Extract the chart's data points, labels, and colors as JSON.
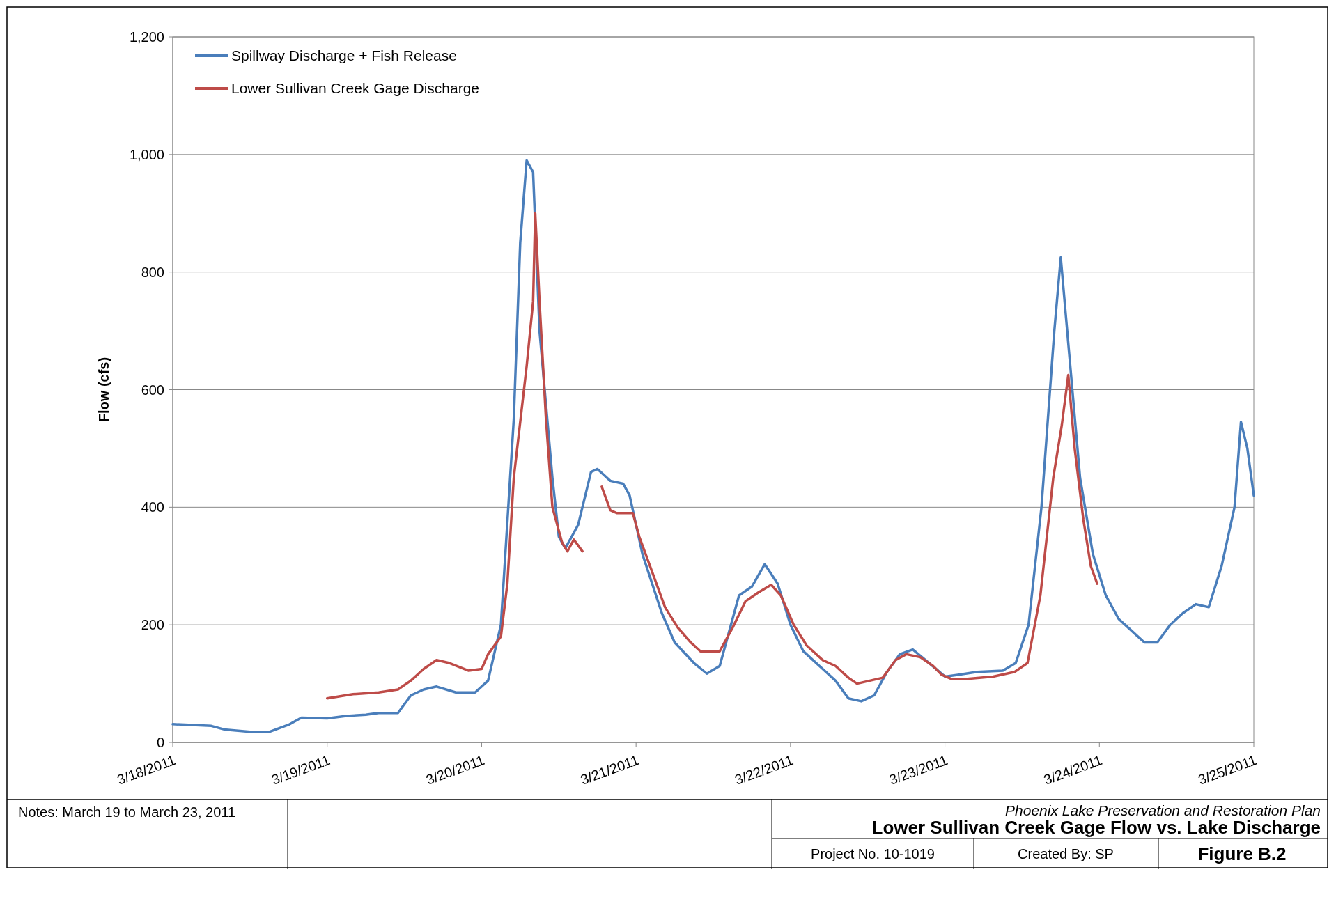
{
  "chart_data": {
    "type": "line",
    "title": "Lower Sullivan Creek Gage Flow vs. Lake Discharge",
    "subtitle": "Phoenix Lake Preservation and Restoration Plan",
    "ylabel": "Flow (cfs)",
    "annotations": [
      "Notes: March 19 to March 23, 2011",
      "Project No. 10-1019",
      "Created By: SP",
      "Figure B.2"
    ],
    "xlim": [
      "2011-03-18",
      "2011-03-25"
    ],
    "xticks": [
      {
        "value": "2011-03-18",
        "label": "3/18/2011"
      },
      {
        "value": "2011-03-19",
        "label": "3/19/2011"
      },
      {
        "value": "2011-03-20",
        "label": "3/20/2011"
      },
      {
        "value": "2011-03-21",
        "label": "3/21/2011"
      },
      {
        "value": "2011-03-22",
        "label": "3/22/2011"
      },
      {
        "value": "2011-03-23",
        "label": "3/23/2011"
      },
      {
        "value": "2011-03-24",
        "label": "3/24/2011"
      },
      {
        "value": "2011-03-25",
        "label": "3/25/2011"
      }
    ],
    "ylim": [
      0,
      1200
    ],
    "yticks": [
      {
        "value": 0,
        "label": "0"
      },
      {
        "value": 200,
        "label": "200"
      },
      {
        "value": 400,
        "label": "400"
      },
      {
        "value": 600,
        "label": "600"
      },
      {
        "value": 800,
        "label": "800"
      },
      {
        "value": 1000,
        "label": "1,000"
      },
      {
        "value": 1200,
        "label": "1,200"
      }
    ],
    "grid": "y",
    "legend": "top left",
    "marker": "none",
    "line_style": "solid",
    "series": [
      {
        "name": "Spillway Discharge + Fish Release",
        "color": "#4a7ebb",
        "x": [
          "2011-03-18T00:00",
          "2011-03-18T06:00",
          "2011-03-18T08:00",
          "2011-03-18T12:00",
          "2011-03-18T15:00",
          "2011-03-18T18:00",
          "2011-03-18T20:00",
          "2011-03-19T00:00",
          "2011-03-19T03:00",
          "2011-03-19T06:00",
          "2011-03-19T08:00",
          "2011-03-19T11:00",
          "2011-03-19T13:00",
          "2011-03-19T15:00",
          "2011-03-19T17:00",
          "2011-03-19T20:00",
          "2011-03-19T23:00",
          "2011-03-20T01:00",
          "2011-03-20T03:00",
          "2011-03-20T05:00",
          "2011-03-20T06:00",
          "2011-03-20T07:00",
          "2011-03-20T08:00",
          "2011-03-20T09:00",
          "2011-03-20T11:00",
          "2011-03-20T12:00",
          "2011-03-20T13:00",
          "2011-03-20T15:00",
          "2011-03-20T17:00",
          "2011-03-20T18:00",
          "2011-03-20T20:00",
          "2011-03-20T22:00",
          "2011-03-20T23:00",
          "2011-03-21T01:00",
          "2011-03-21T04:00",
          "2011-03-21T06:00",
          "2011-03-21T09:00",
          "2011-03-21T11:00",
          "2011-03-21T13:00",
          "2011-03-21T14:00",
          "2011-03-21T16:00",
          "2011-03-21T18:00",
          "2011-03-21T20:00",
          "2011-03-21T22:00",
          "2011-03-22T00:00",
          "2011-03-22T02:00",
          "2011-03-22T05:00",
          "2011-03-22T07:00",
          "2011-03-22T09:00",
          "2011-03-22T11:00",
          "2011-03-22T13:00",
          "2011-03-22T15:00",
          "2011-03-22T17:00",
          "2011-03-22T19:00",
          "2011-03-22T21:00",
          "2011-03-23T00:00",
          "2011-03-23T02:00",
          "2011-03-23T05:00",
          "2011-03-23T09:00",
          "2011-03-23T11:00",
          "2011-03-23T13:00",
          "2011-03-23T15:00",
          "2011-03-23T17:00",
          "2011-03-23T18:00",
          "2011-03-23T19:00",
          "2011-03-23T21:00",
          "2011-03-23T23:00",
          "2011-03-24T01:00",
          "2011-03-24T03:00",
          "2011-03-24T05:00",
          "2011-03-24T07:00",
          "2011-03-24T09:00",
          "2011-03-24T11:00",
          "2011-03-24T13:00",
          "2011-03-24T15:00",
          "2011-03-24T17:00",
          "2011-03-24T19:00",
          "2011-03-24T21:00",
          "2011-03-24T22:00",
          "2011-03-24T23:00",
          "2011-03-25T00:00"
        ],
        "values": [
          31,
          28,
          22,
          18,
          18,
          30,
          42,
          41,
          45,
          47,
          50,
          50,
          80,
          90,
          95,
          85,
          85,
          105,
          200,
          550,
          850,
          990,
          970,
          700,
          450,
          350,
          330,
          370,
          460,
          465,
          445,
          440,
          420,
          320,
          220,
          170,
          135,
          117,
          130,
          170,
          250,
          265,
          303,
          270,
          200,
          155,
          125,
          105,
          75,
          70,
          80,
          120,
          150,
          158,
          140,
          112,
          115,
          120,
          122,
          135,
          200,
          400,
          700,
          825,
          700,
          450,
          320,
          250,
          210,
          190,
          170,
          170,
          200,
          220,
          235,
          230,
          300,
          400,
          545,
          500,
          420
        ]
      },
      {
        "name": "Lower Sullivan Creek  Gage Discharge",
        "color": "#be4b48",
        "x": [
          "2011-03-19T00:00",
          "2011-03-19T04:00",
          "2011-03-19T08:00",
          "2011-03-19T11:00",
          "2011-03-19T13:00",
          "2011-03-19T15:00",
          "2011-03-19T17:00",
          "2011-03-19T19:00",
          "2011-03-19T22:00",
          "2011-03-20T00:00",
          "2011-03-20T01:00",
          "2011-03-20T03:00",
          "2011-03-20T04:00",
          "2011-03-20T05:00",
          "2011-03-20T07:00",
          "2011-03-20T08:00",
          "2011-03-20T08:20",
          "2011-03-20T09:00",
          "2011-03-20T10:00",
          "2011-03-20T11:00",
          "2011-03-20T12:30",
          "2011-03-20T13:20",
          "2011-03-20T14:20",
          "2011-03-20T15:40",
          "2011-03-20T17:00",
          "2011-03-20T18:40",
          "2011-03-20T20:00",
          "2011-03-20T21:00",
          "2011-03-20T23:30",
          "2011-03-21T00:30",
          "2011-03-21T02:30",
          "2011-03-21T04:30",
          "2011-03-21T06:30",
          "2011-03-21T08:30",
          "2011-03-21T10:00",
          "2011-03-21T13:00",
          "2011-03-21T15:00",
          "2011-03-21T17:00",
          "2011-03-21T19:00",
          "2011-03-21T21:00",
          "2011-03-21T22:30",
          "2011-03-22T00:30",
          "2011-03-22T02:30",
          "2011-03-22T05:00",
          "2011-03-22T07:00",
          "2011-03-22T09:00",
          "2011-03-22T10:20",
          "2011-03-22T14:20",
          "2011-03-22T16:20",
          "2011-03-22T18:00",
          "2011-03-22T20:10",
          "2011-03-22T22:10",
          "2011-03-22T23:30",
          "2011-03-23T01:00",
          "2011-03-23T03:30",
          "2011-03-23T07:30",
          "2011-03-23T10:50",
          "2011-03-23T12:50",
          "2011-03-23T14:50",
          "2011-03-23T16:50",
          "2011-03-23T18:10",
          "2011-03-23T19:10",
          "2011-03-23T20:10",
          "2011-03-23T21:30",
          "2011-03-23T22:40",
          "2011-03-23T23:40"
        ],
        "values": [
          75,
          82,
          85,
          90,
          105,
          125,
          140,
          135,
          122,
          125,
          150,
          180,
          270,
          450,
          640,
          750,
          900,
          750,
          550,
          400,
          340,
          325,
          345,
          325,
          null,
          435,
          395,
          390,
          390,
          350,
          290,
          230,
          195,
          170,
          155,
          155,
          195,
          240,
          255,
          268,
          250,
          200,
          165,
          140,
          130,
          110,
          100,
          110,
          140,
          150,
          145,
          130,
          115,
          108,
          108,
          112,
          120,
          135,
          250,
          450,
          540,
          625,
          500,
          380,
          300,
          270
        ]
      }
    ]
  }
}
